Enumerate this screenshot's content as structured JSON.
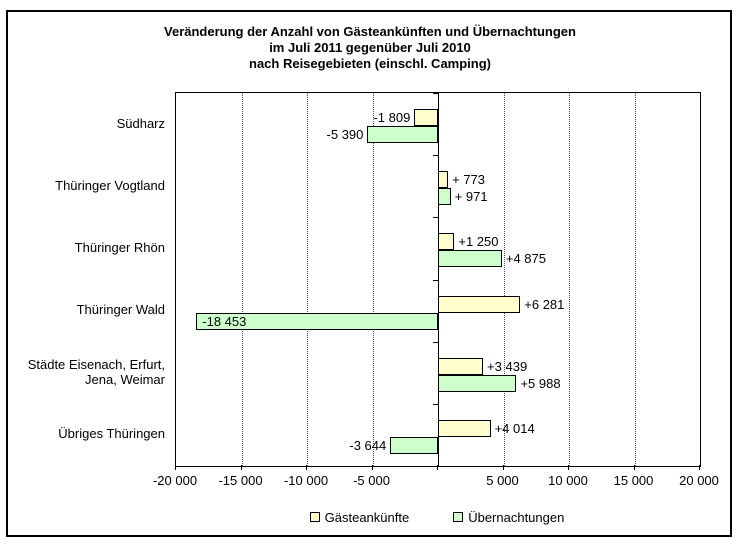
{
  "title": {
    "lines": [
      "Veränderung der Anzahl von Gästeankünften und Übernachtungen",
      "im Juli 2011 gegenüber Juli 2010",
      "nach Reisegebieten (einschl. Camping)"
    ]
  },
  "chart_data": {
    "type": "bar",
    "orientation": "horizontal",
    "categories": [
      "Südharz",
      "Thüringer Vogtland",
      "Thüringer Rhön",
      "Thüringer Wald",
      "Städte Eisenach, Erfurt, Jena, Weimar",
      "Übriges Thüringen"
    ],
    "category_display": [
      "Südharz",
      "Thüringer Vogtland",
      "Thüringer Rhön",
      "Thüringer Wald",
      "Städte Eisenach, Erfurt,\nJena, Weimar",
      "Übriges Thüringen"
    ],
    "series": [
      {
        "name": "Gästeankünfte",
        "color": "#FFFFCC",
        "values": [
          -1809,
          773,
          1250,
          6281,
          3439,
          4014
        ],
        "labels": [
          "-1 809",
          "+ 773",
          "+1 250",
          "+6 281",
          "+3 439",
          "+4 014"
        ],
        "label_inside": [
          false,
          false,
          false,
          false,
          false,
          false
        ]
      },
      {
        "name": "Übernachtungen",
        "color": "#CCFFCC",
        "values": [
          -5390,
          971,
          4875,
          -18453,
          5988,
          -3644
        ],
        "labels": [
          "-5 390",
          "+ 971",
          "+4 875",
          "-18 453",
          "+5 988",
          "-3 644"
        ],
        "label_inside": [
          false,
          false,
          false,
          true,
          false,
          false
        ]
      }
    ],
    "xlim": [
      -20000,
      20000
    ],
    "x_ticks": [
      -20000,
      -15000,
      -10000,
      -5000,
      0,
      5000,
      10000,
      15000,
      20000
    ],
    "x_tick_labels": [
      "-20 000",
      "-15 000",
      "-10 000",
      "-5 000",
      "",
      "5 000",
      "10 000",
      "15 000",
      "20 000"
    ],
    "grid": "vertical-dotted",
    "legend_position": "bottom",
    "bar_border_color": "#000000",
    "background_color": "#FFFFFF"
  }
}
